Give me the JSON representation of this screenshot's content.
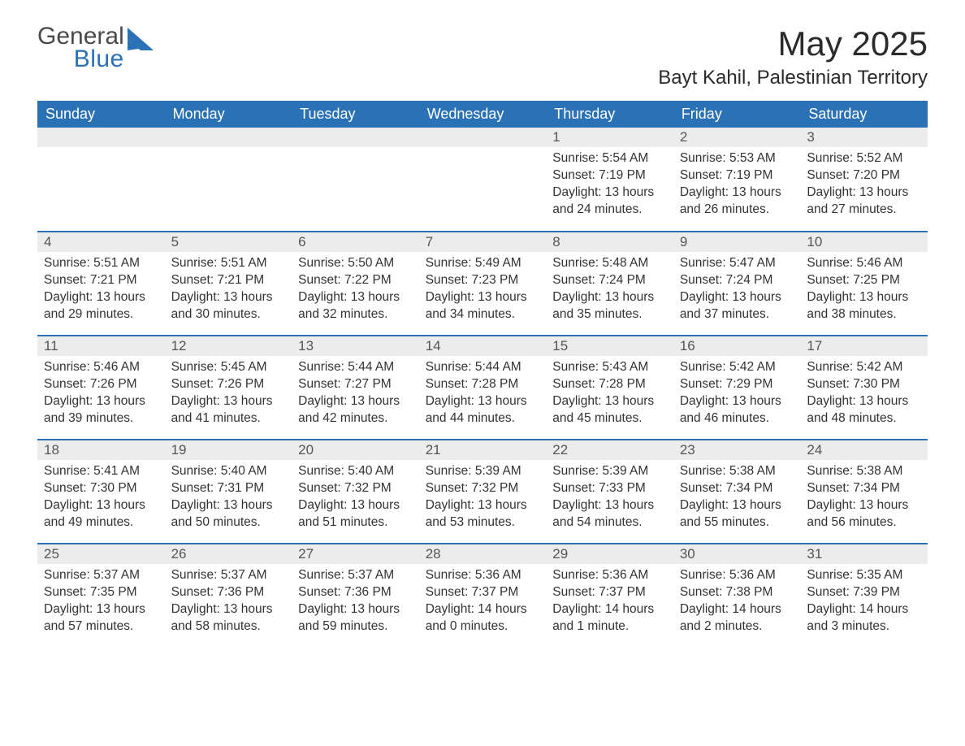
{
  "logo": {
    "word1": "General",
    "word2": "Blue"
  },
  "header": {
    "month_title": "May 2025",
    "location": "Bayt Kahil, Palestinian Territory"
  },
  "colors": {
    "header_bg": "#2a72b5",
    "header_text": "#ffffff",
    "daynum_bg": "#ececec",
    "row_divider": "#2a72b5",
    "body_text": "#333333",
    "logo_gray": "#4a4a4a",
    "logo_blue": "#2a72b5",
    "page_bg": "#ffffff"
  },
  "week_days": [
    "Sunday",
    "Monday",
    "Tuesday",
    "Wednesday",
    "Thursday",
    "Friday",
    "Saturday"
  ],
  "labels": {
    "sunrise": "Sunrise: ",
    "sunset": "Sunset: ",
    "daylight": "Daylight: "
  },
  "weeks": [
    [
      null,
      null,
      null,
      null,
      {
        "n": "1",
        "sunrise": "5:54 AM",
        "sunset": "7:19 PM",
        "daylight": "13 hours and 24 minutes."
      },
      {
        "n": "2",
        "sunrise": "5:53 AM",
        "sunset": "7:19 PM",
        "daylight": "13 hours and 26 minutes."
      },
      {
        "n": "3",
        "sunrise": "5:52 AM",
        "sunset": "7:20 PM",
        "daylight": "13 hours and 27 minutes."
      }
    ],
    [
      {
        "n": "4",
        "sunrise": "5:51 AM",
        "sunset": "7:21 PM",
        "daylight": "13 hours and 29 minutes."
      },
      {
        "n": "5",
        "sunrise": "5:51 AM",
        "sunset": "7:21 PM",
        "daylight": "13 hours and 30 minutes."
      },
      {
        "n": "6",
        "sunrise": "5:50 AM",
        "sunset": "7:22 PM",
        "daylight": "13 hours and 32 minutes."
      },
      {
        "n": "7",
        "sunrise": "5:49 AM",
        "sunset": "7:23 PM",
        "daylight": "13 hours and 34 minutes."
      },
      {
        "n": "8",
        "sunrise": "5:48 AM",
        "sunset": "7:24 PM",
        "daylight": "13 hours and 35 minutes."
      },
      {
        "n": "9",
        "sunrise": "5:47 AM",
        "sunset": "7:24 PM",
        "daylight": "13 hours and 37 minutes."
      },
      {
        "n": "10",
        "sunrise": "5:46 AM",
        "sunset": "7:25 PM",
        "daylight": "13 hours and 38 minutes."
      }
    ],
    [
      {
        "n": "11",
        "sunrise": "5:46 AM",
        "sunset": "7:26 PM",
        "daylight": "13 hours and 39 minutes."
      },
      {
        "n": "12",
        "sunrise": "5:45 AM",
        "sunset": "7:26 PM",
        "daylight": "13 hours and 41 minutes."
      },
      {
        "n": "13",
        "sunrise": "5:44 AM",
        "sunset": "7:27 PM",
        "daylight": "13 hours and 42 minutes."
      },
      {
        "n": "14",
        "sunrise": "5:44 AM",
        "sunset": "7:28 PM",
        "daylight": "13 hours and 44 minutes."
      },
      {
        "n": "15",
        "sunrise": "5:43 AM",
        "sunset": "7:28 PM",
        "daylight": "13 hours and 45 minutes."
      },
      {
        "n": "16",
        "sunrise": "5:42 AM",
        "sunset": "7:29 PM",
        "daylight": "13 hours and 46 minutes."
      },
      {
        "n": "17",
        "sunrise": "5:42 AM",
        "sunset": "7:30 PM",
        "daylight": "13 hours and 48 minutes."
      }
    ],
    [
      {
        "n": "18",
        "sunrise": "5:41 AM",
        "sunset": "7:30 PM",
        "daylight": "13 hours and 49 minutes."
      },
      {
        "n": "19",
        "sunrise": "5:40 AM",
        "sunset": "7:31 PM",
        "daylight": "13 hours and 50 minutes."
      },
      {
        "n": "20",
        "sunrise": "5:40 AM",
        "sunset": "7:32 PM",
        "daylight": "13 hours and 51 minutes."
      },
      {
        "n": "21",
        "sunrise": "5:39 AM",
        "sunset": "7:32 PM",
        "daylight": "13 hours and 53 minutes."
      },
      {
        "n": "22",
        "sunrise": "5:39 AM",
        "sunset": "7:33 PM",
        "daylight": "13 hours and 54 minutes."
      },
      {
        "n": "23",
        "sunrise": "5:38 AM",
        "sunset": "7:34 PM",
        "daylight": "13 hours and 55 minutes."
      },
      {
        "n": "24",
        "sunrise": "5:38 AM",
        "sunset": "7:34 PM",
        "daylight": "13 hours and 56 minutes."
      }
    ],
    [
      {
        "n": "25",
        "sunrise": "5:37 AM",
        "sunset": "7:35 PM",
        "daylight": "13 hours and 57 minutes."
      },
      {
        "n": "26",
        "sunrise": "5:37 AM",
        "sunset": "7:36 PM",
        "daylight": "13 hours and 58 minutes."
      },
      {
        "n": "27",
        "sunrise": "5:37 AM",
        "sunset": "7:36 PM",
        "daylight": "13 hours and 59 minutes."
      },
      {
        "n": "28",
        "sunrise": "5:36 AM",
        "sunset": "7:37 PM",
        "daylight": "14 hours and 0 minutes."
      },
      {
        "n": "29",
        "sunrise": "5:36 AM",
        "sunset": "7:37 PM",
        "daylight": "14 hours and 1 minute."
      },
      {
        "n": "30",
        "sunrise": "5:36 AM",
        "sunset": "7:38 PM",
        "daylight": "14 hours and 2 minutes."
      },
      {
        "n": "31",
        "sunrise": "5:35 AM",
        "sunset": "7:39 PM",
        "daylight": "14 hours and 3 minutes."
      }
    ]
  ]
}
